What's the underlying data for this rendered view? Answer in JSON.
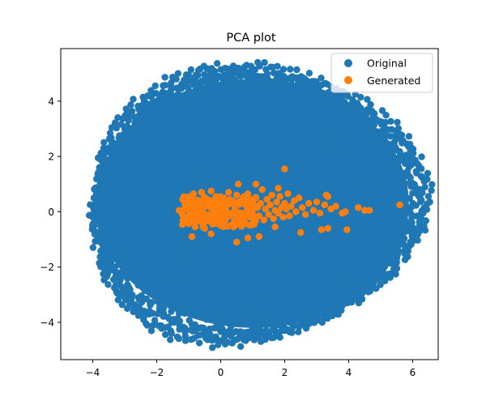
{
  "chart_data": {
    "type": "scatter",
    "title": "PCA plot",
    "xlabel": "",
    "ylabel": "",
    "xlim": [
      -5.0,
      6.8
    ],
    "ylim": [
      -5.35,
      5.9
    ],
    "xticks": [
      -4,
      -2,
      0,
      2,
      4,
      6
    ],
    "yticks": [
      -4,
      -2,
      0,
      2,
      4
    ],
    "grid": false,
    "legend_position": "top-right",
    "series": [
      {
        "name": "Original",
        "color": "#1f77b4",
        "shape": "elliptical cloud centered near (1.0, 0.3), x spread about -4.5 to 6.3, y spread about -4.9 to 5.4"
      },
      {
        "name": "Generated",
        "color": "#ff7f0e",
        "points": [
          [
            -1.3,
            0.05
          ],
          [
            -1.2,
            -0.1
          ],
          [
            -1.1,
            0.2
          ],
          [
            -1.05,
            0.35
          ],
          [
            -1.0,
            -0.4
          ],
          [
            -0.95,
            0.55
          ],
          [
            -0.9,
            -0.15
          ],
          [
            -0.85,
            0.65
          ],
          [
            -0.8,
            -0.55
          ],
          [
            -0.75,
            0.0
          ],
          [
            -0.7,
            0.3
          ],
          [
            -0.65,
            -0.3
          ],
          [
            -0.6,
            0.7
          ],
          [
            -0.55,
            0.1
          ],
          [
            -0.5,
            -0.6
          ],
          [
            -0.45,
            0.45
          ],
          [
            -0.4,
            -0.2
          ],
          [
            -0.35,
            0.25
          ],
          [
            -0.3,
            0.75
          ],
          [
            -0.25,
            -0.45
          ],
          [
            -0.2,
            0.15
          ],
          [
            -0.15,
            0.55
          ],
          [
            -0.1,
            -0.1
          ],
          [
            -0.05,
            0.35
          ],
          [
            0.0,
            -0.5
          ],
          [
            0.05,
            0.05
          ],
          [
            0.1,
            0.5
          ],
          [
            0.15,
            -0.3
          ],
          [
            0.2,
            0.25
          ],
          [
            0.25,
            0.7
          ],
          [
            0.3,
            -0.15
          ],
          [
            0.35,
            0.4
          ],
          [
            0.4,
            -0.55
          ],
          [
            0.45,
            0.1
          ],
          [
            0.5,
            0.6
          ],
          [
            0.55,
            -0.35
          ],
          [
            0.6,
            0.3
          ],
          [
            0.65,
            -0.05
          ],
          [
            0.7,
            0.45
          ],
          [
            0.75,
            -0.4
          ],
          [
            0.8,
            0.2
          ],
          [
            0.85,
            0.65
          ],
          [
            0.9,
            -0.2
          ],
          [
            0.95,
            0.35
          ],
          [
            1.0,
            0.05
          ],
          [
            1.05,
            -0.45
          ],
          [
            1.1,
            0.5
          ],
          [
            1.15,
            0.15
          ],
          [
            1.2,
            -0.15
          ],
          [
            1.25,
            0.3
          ],
          [
            1.3,
            0.8
          ],
          [
            1.35,
            -0.3
          ],
          [
            1.4,
            0.1
          ],
          [
            1.45,
            0.45
          ],
          [
            1.5,
            -0.1
          ],
          [
            1.55,
            0.25
          ],
          [
            1.6,
            0.6
          ],
          [
            1.65,
            -0.25
          ],
          [
            1.7,
            0.05
          ],
          [
            1.75,
            0.35
          ],
          [
            1.8,
            -0.05
          ],
          [
            1.85,
            0.55
          ],
          [
            1.9,
            0.15
          ],
          [
            1.95,
            -0.2
          ],
          [
            2.0,
            0.3
          ],
          [
            2.05,
            0.1
          ],
          [
            2.1,
            0.65
          ],
          [
            2.15,
            -0.15
          ],
          [
            2.2,
            0.2
          ],
          [
            2.3,
            0.4
          ],
          [
            2.35,
            0.0
          ],
          [
            2.45,
            0.5
          ],
          [
            2.55,
            0.15
          ],
          [
            2.65,
            -0.1
          ],
          [
            2.75,
            0.3
          ],
          [
            2.9,
            0.05
          ],
          [
            3.0,
            0.35
          ],
          [
            3.1,
            -0.05
          ],
          [
            3.25,
            0.25
          ],
          [
            3.35,
            0.55
          ],
          [
            3.45,
            0.1
          ],
          [
            3.6,
            0.2
          ],
          [
            3.8,
            -0.05
          ],
          [
            3.9,
            0.0
          ],
          [
            4.3,
            0.15
          ],
          [
            4.5,
            0.05
          ],
          [
            4.65,
            0.05
          ],
          [
            5.6,
            0.25
          ],
          [
            2.0,
            1.55
          ],
          [
            0.55,
            1.0
          ],
          [
            1.1,
            1.0
          ],
          [
            1.8,
            0.85
          ],
          [
            3.3,
            0.6
          ],
          [
            0.5,
            -1.1
          ],
          [
            1.2,
            -0.9
          ],
          [
            -0.9,
            -0.9
          ],
          [
            2.5,
            -0.75
          ],
          [
            3.15,
            -0.65
          ],
          [
            3.35,
            -0.6
          ],
          [
            3.95,
            -0.65
          ],
          [
            0.85,
            -0.95
          ],
          [
            -0.3,
            -0.8
          ],
          [
            1.7,
            -0.55
          ]
        ]
      }
    ]
  }
}
